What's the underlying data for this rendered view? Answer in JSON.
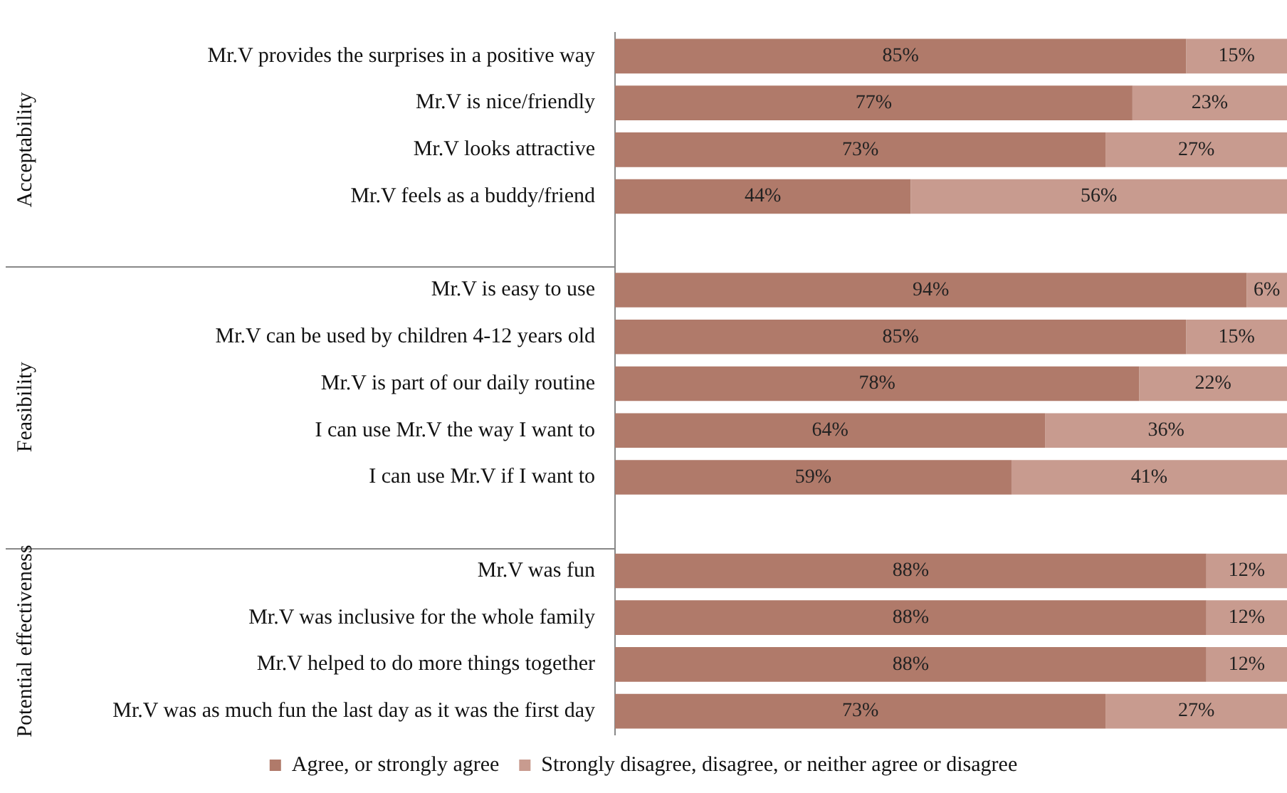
{
  "chart_data": {
    "type": "bar",
    "orientation": "horizontal",
    "stacked": true,
    "legend": "bottom",
    "grid": false,
    "categories": [
      "Mr.V provides the surprises in a positive way",
      "Mr.V is nice/friendly",
      "Mr.V looks attractive",
      "Mr.V feels as a buddy/friend",
      null,
      "Mr.V is easy to use",
      "Mr.V can be used by children 4-12 years old",
      "Mr.V is part of our daily routine",
      "I can use Mr.V the way I want to",
      "I can use Mr.V if I want to",
      null,
      "Mr.V was fun",
      "Mr.V was inclusive for the whole family",
      "Mr.V helped to do more things together",
      "Mr.V was as much fun the last day as it was the first day"
    ],
    "series": [
      {
        "name": "Agree, or strongly agree",
        "color": "#b07a6a",
        "values": [
          85,
          77,
          73,
          44,
          null,
          94,
          85,
          78,
          64,
          59,
          null,
          88,
          88,
          88,
          73
        ],
        "value_labels": [
          "85%",
          "77%",
          "73%",
          "44%",
          null,
          "94%",
          "85%",
          "78%",
          "64%",
          "59%",
          null,
          "88%",
          "88%",
          "88%",
          "73%"
        ]
      },
      {
        "name": "Strongly disagree, disagree, or neither agree or disagree",
        "color": "#c89b8f",
        "values": [
          15,
          23,
          27,
          56,
          null,
          6,
          15,
          22,
          36,
          41,
          null,
          12,
          12,
          12,
          27
        ],
        "value_labels": [
          "15%",
          "23%",
          "27%",
          "56%",
          null,
          "6%",
          "15%",
          "22%",
          "36%",
          "41%",
          null,
          "12%",
          "12%",
          "12%",
          "27%"
        ]
      }
    ],
    "annotations": [
      "Acceptability",
      "Feasibility",
      "Potential effectiveness"
    ]
  }
}
